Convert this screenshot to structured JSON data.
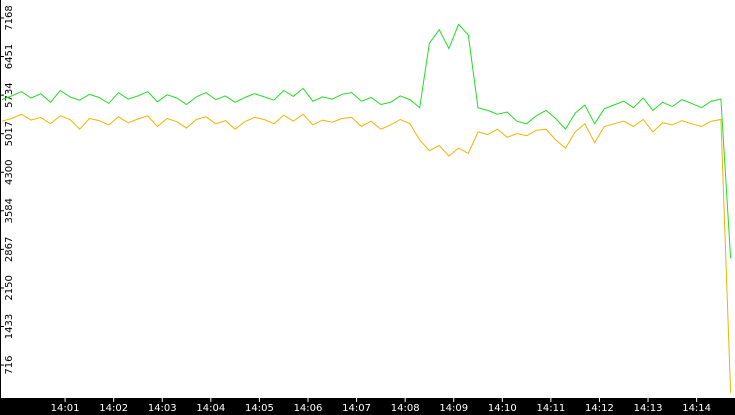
{
  "chart_data": {
    "type": "line",
    "x": [
      -0.3,
      -0.1,
      0.1,
      0.3,
      0.5,
      0.7,
      0.9,
      1.1,
      1.3,
      1.5,
      1.7,
      1.9,
      2.1,
      2.3,
      2.5,
      2.7,
      2.9,
      3.1,
      3.3,
      3.5,
      3.7,
      3.9,
      4.1,
      4.3,
      4.5,
      4.7,
      4.9,
      5.1,
      5.3,
      5.5,
      5.7,
      5.9,
      6.1,
      6.3,
      6.5,
      6.7,
      6.9,
      7.1,
      7.3,
      7.5,
      7.7,
      7.9,
      8.1,
      8.3,
      8.5,
      8.7,
      8.9,
      9.1,
      9.3,
      9.5,
      9.7,
      9.9,
      10.1,
      10.3,
      10.5,
      10.7,
      10.9,
      11.1,
      11.3,
      11.5,
      11.7,
      11.9,
      12.1,
      12.3,
      12.5,
      12.7,
      12.9,
      13.1,
      13.3,
      13.5,
      13.7,
      13.9,
      14.1,
      14.3,
      14.5,
      14.7
    ],
    "series": [
      {
        "color": "#22dd22",
        "values": [
          5650,
          5720,
          5800,
          5680,
          5760,
          5600,
          5820,
          5700,
          5640,
          5750,
          5690,
          5580,
          5780,
          5660,
          5720,
          5800,
          5610,
          5740,
          5680,
          5560,
          5700,
          5780,
          5650,
          5720,
          5600,
          5690,
          5760,
          5700,
          5640,
          5820,
          5710,
          5860,
          5620,
          5700,
          5660,
          5750,
          5780,
          5620,
          5690,
          5560,
          5600,
          5720,
          5650,
          5500,
          6700,
          6950,
          6600,
          7050,
          6850,
          5500,
          5450,
          5380,
          5420,
          5250,
          5200,
          5350,
          5450,
          5300,
          5100,
          5400,
          5550,
          5200,
          5480,
          5550,
          5620,
          5500,
          5680,
          5450,
          5600,
          5520,
          5650,
          5580,
          5500,
          5620,
          5660,
          2700
        ]
      },
      {
        "color": "#f0b400",
        "values": [
          5250,
          5300,
          5380,
          5270,
          5320,
          5200,
          5350,
          5280,
          5100,
          5300,
          5260,
          5180,
          5330,
          5220,
          5290,
          5350,
          5150,
          5300,
          5240,
          5120,
          5280,
          5330,
          5200,
          5260,
          5100,
          5240,
          5320,
          5280,
          5200,
          5360,
          5250,
          5380,
          5180,
          5270,
          5230,
          5300,
          5320,
          5150,
          5250,
          5100,
          5180,
          5280,
          5200,
          4900,
          4700,
          4800,
          4600,
          4750,
          4650,
          5050,
          5000,
          5100,
          4950,
          5020,
          4980,
          5080,
          5100,
          4900,
          4750,
          5050,
          5200,
          4850,
          5150,
          5200,
          5250,
          5150,
          5280,
          5050,
          5220,
          5180,
          5260,
          5200,
          5150,
          5250,
          5280,
          200
        ]
      }
    ],
    "xlim": [
      -0.34,
      14.79
    ],
    "xticks": [
      {
        "value": 1,
        "label": "14:01"
      },
      {
        "value": 2,
        "label": "14:02"
      },
      {
        "value": 3,
        "label": "14:03"
      },
      {
        "value": 4,
        "label": "14:04"
      },
      {
        "value": 5,
        "label": "14:05"
      },
      {
        "value": 6,
        "label": "14:06"
      },
      {
        "value": 7,
        "label": "14:07"
      },
      {
        "value": 8,
        "label": "14:08"
      },
      {
        "value": 9,
        "label": "14:09"
      },
      {
        "value": 10,
        "label": "14:10"
      },
      {
        "value": 11,
        "label": "14:11"
      },
      {
        "value": 12,
        "label": "14:12"
      },
      {
        "value": 13,
        "label": "14:13"
      },
      {
        "value": 14,
        "label": "14:14"
      }
    ],
    "ylim": [
      104,
      7502
    ],
    "yticks": [
      716,
      1433,
      2150,
      2867,
      3584,
      4300,
      5017,
      5734,
      6451,
      7168
    ]
  }
}
